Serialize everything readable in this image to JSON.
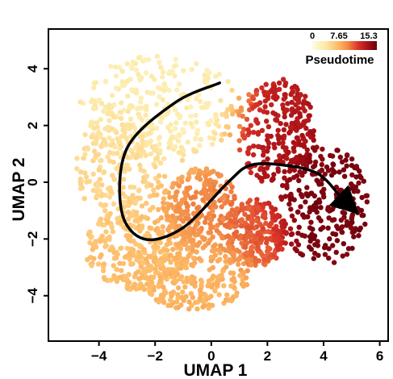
{
  "chart_data": {
    "type": "scatter",
    "xlabel": "UMAP 1",
    "ylabel": "UMAP 2",
    "xlim": [
      -5.8,
      6.3
    ],
    "ylim": [
      -5.6,
      5.4
    ],
    "xticks": [
      -4,
      -2,
      0,
      2,
      4,
      6
    ],
    "yticks": [
      -4,
      -2,
      0,
      2,
      4
    ],
    "grid": false,
    "color_scale": {
      "title": "Pseudotime",
      "min": 0,
      "max": 15.3,
      "tick_labels": [
        "0",
        "7.65",
        "15.3"
      ],
      "colors": [
        "#fffde0",
        "#fde9a8",
        "#fdbb67",
        "#f28a45",
        "#d73027",
        "#a50f15",
        "#67000d"
      ],
      "placement": "top-right"
    },
    "clusters": [
      {
        "cx": -1.8,
        "cy": 2.6,
        "rx": 2.9,
        "ry": 1.9,
        "pseudotime": 2.0
      },
      {
        "cx": -3.2,
        "cy": 0.6,
        "rx": 1.6,
        "ry": 2.2,
        "pseudotime": 3.6
      },
      {
        "cx": -2.6,
        "cy": -2.3,
        "rx": 1.9,
        "ry": 1.5,
        "pseudotime": 4.8
      },
      {
        "cx": -0.6,
        "cy": -3.3,
        "rx": 2.0,
        "ry": 1.2,
        "pseudotime": 5.5
      },
      {
        "cx": -0.4,
        "cy": -1.0,
        "rx": 1.4,
        "ry": 1.5,
        "pseudotime": 7.8
      },
      {
        "cx": 1.6,
        "cy": -1.8,
        "rx": 1.1,
        "ry": 1.2,
        "pseudotime": 9.0
      },
      {
        "cx": 2.3,
        "cy": 1.8,
        "rx": 1.4,
        "ry": 1.9,
        "pseudotime": 12.2
      },
      {
        "cx": 4.0,
        "cy": -0.8,
        "rx": 1.6,
        "ry": 2.1,
        "pseudotime": 14.6
      }
    ],
    "trajectory": {
      "x": [
        0.3,
        -1.3,
        -3.0,
        -3.2,
        -2.4,
        -1.0,
        0.6,
        1.4,
        2.6,
        3.8,
        4.6,
        4.9
      ],
      "y": [
        3.5,
        2.8,
        1.2,
        -1.0,
        -2.0,
        -1.6,
        0.0,
        0.6,
        0.6,
        0.3,
        -0.5,
        -0.8
      ],
      "color": "#000000",
      "arrow": "end"
    }
  }
}
